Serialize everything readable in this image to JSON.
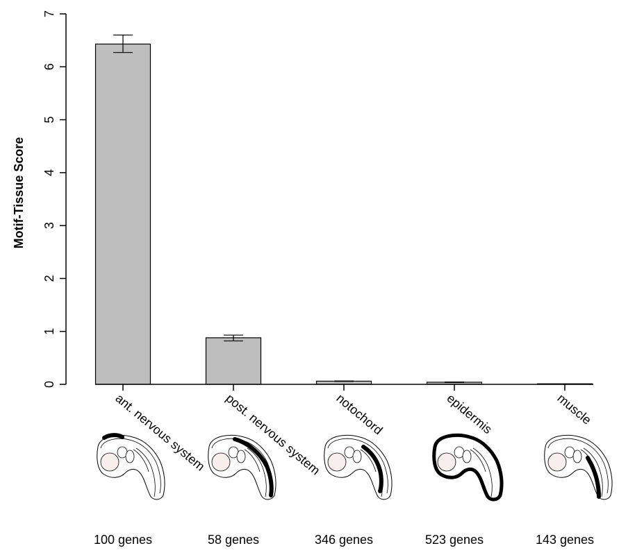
{
  "chart_data": {
    "type": "bar",
    "ylabel": "Motif-Tissue Score",
    "ylim": [
      0,
      7
    ],
    "yticks": [
      "0",
      "1",
      "2",
      "3",
      "4",
      "5",
      "6",
      "7"
    ],
    "categories": [
      "ant. nervous system",
      "post. nervous system",
      "notochord",
      "epidermis",
      "muscle"
    ],
    "values": [
      6.43,
      0.88,
      0.06,
      0.04,
      0.0
    ],
    "error_low": [
      6.27,
      0.82,
      0.055,
      0.035,
      0.0
    ],
    "error_high": [
      6.6,
      0.93,
      0.065,
      0.045,
      0.0
    ],
    "gene_counts": [
      "100 genes",
      "58 genes",
      "346 genes",
      "523 genes",
      "143 genes"
    ],
    "highlight": [
      "anterior-dorsal",
      "dorsal-posterior",
      "tail-axis",
      "outline",
      "tail-muscle"
    ],
    "bar_color": "#bebebe",
    "grid": false
  }
}
